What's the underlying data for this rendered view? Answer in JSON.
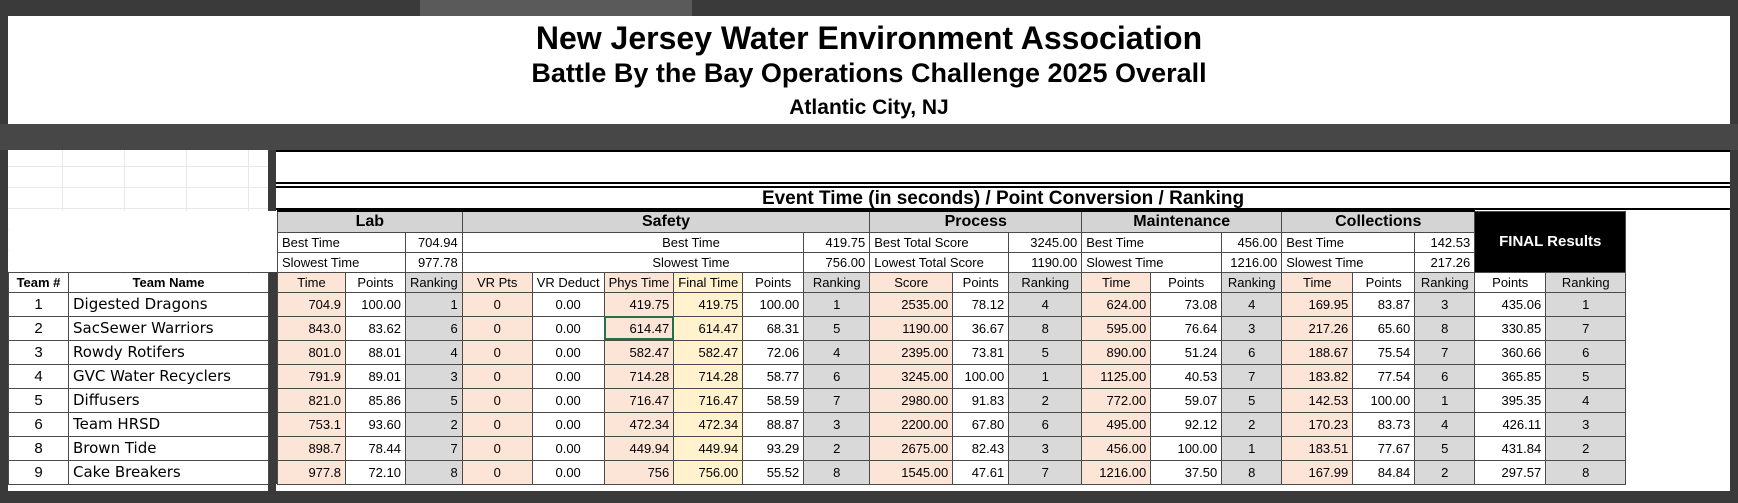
{
  "titles": {
    "line1": "New Jersey Water Environment Association",
    "line2": "Battle By the Bay Operations Challenge 2025 Overall",
    "line3": "Atlantic City, NJ"
  },
  "subheader": "Event Time (in seconds) / Point Conversion / Ranking",
  "groups": {
    "lab": "Lab",
    "safety": "Safety",
    "process": "Process",
    "maintenance": "Maintenance",
    "collections": "Collections",
    "final": "FINAL Results"
  },
  "best": {
    "lab_label": "Best Time",
    "lab_value": "704.94",
    "safety_label": "Best Time",
    "safety_value": "419.75",
    "process_label": "Best Total Score",
    "process_value": "3245.00",
    "maint_label": "Best Time",
    "maint_value": "456.00",
    "coll_label": "Best Time",
    "coll_value": "142.53"
  },
  "slow": {
    "lab_label": "Slowest Time",
    "lab_value": "977.78",
    "safety_label": "Slowest Time",
    "safety_value": "756.00",
    "process_label": "Lowest Total Score",
    "process_value": "1190.00",
    "maint_label": "Slowest Time",
    "maint_value": "1216.00",
    "coll_label": "Slowest Time",
    "coll_value": "217.26"
  },
  "columns": [
    "Team #",
    "Team Name",
    "Time",
    "Points",
    "Ranking",
    "VR Pts",
    "VR Deduct",
    "Phys Time",
    "Final Time",
    "Points",
    "Ranking",
    "Score",
    "Points",
    "Ranking",
    "Time",
    "Points",
    "Ranking",
    "Time",
    "Points",
    "Ranking",
    "Points",
    "Ranking"
  ],
  "rows": [
    [
      "1",
      "Digested Dragons",
      "704.9",
      "100.00",
      "1",
      "0",
      "0.00",
      "419.75",
      "419.75",
      "100.00",
      "1",
      "2535.00",
      "78.12",
      "4",
      "624.00",
      "73.08",
      "4",
      "169.95",
      "83.87",
      "3",
      "435.06",
      "1"
    ],
    [
      "2",
      "SacSewer Warriors",
      "843.0",
      "83.62",
      "6",
      "0",
      "0.00",
      "614.47",
      "614.47",
      "68.31",
      "5",
      "1190.00",
      "36.67",
      "8",
      "595.00",
      "76.64",
      "3",
      "217.26",
      "65.60",
      "8",
      "330.85",
      "7"
    ],
    [
      "3",
      "Rowdy Rotifers",
      "801.0",
      "88.01",
      "4",
      "0",
      "0.00",
      "582.47",
      "582.47",
      "72.06",
      "4",
      "2395.00",
      "73.81",
      "5",
      "890.00",
      "51.24",
      "6",
      "188.67",
      "75.54",
      "7",
      "360.66",
      "6"
    ],
    [
      "4",
      "GVC Water Recyclers",
      "791.9",
      "89.01",
      "3",
      "0",
      "0.00",
      "714.28",
      "714.28",
      "58.77",
      "6",
      "3245.00",
      "100.00",
      "1",
      "1125.00",
      "40.53",
      "7",
      "183.82",
      "77.54",
      "6",
      "365.85",
      "5"
    ],
    [
      "5",
      "Diffusers",
      "821.0",
      "85.86",
      "5",
      "0",
      "0.00",
      "716.47",
      "716.47",
      "58.59",
      "7",
      "2980.00",
      "91.83",
      "2",
      "772.00",
      "59.07",
      "5",
      "142.53",
      "100.00",
      "1",
      "395.35",
      "4"
    ],
    [
      "6",
      "Team HRSD",
      "753.1",
      "93.60",
      "2",
      "0",
      "0.00",
      "472.34",
      "472.34",
      "88.87",
      "3",
      "2200.00",
      "67.80",
      "6",
      "495.00",
      "92.12",
      "2",
      "170.23",
      "83.73",
      "4",
      "426.11",
      "3"
    ],
    [
      "8",
      "Brown Tide",
      "898.7",
      "78.44",
      "7",
      "0",
      "0.00",
      "449.94",
      "449.94",
      "93.29",
      "2",
      "2675.00",
      "82.43",
      "3",
      "456.00",
      "100.00",
      "1",
      "183.51",
      "77.67",
      "5",
      "431.84",
      "2"
    ],
    [
      "9",
      "Cake Breakers",
      "977.8",
      "72.10",
      "8",
      "0",
      "0.00",
      "756",
      "756.00",
      "55.52",
      "8",
      "1545.00",
      "47.61",
      "7",
      "1216.00",
      "37.50",
      "8",
      "167.99",
      "84.84",
      "2",
      "297.57",
      "8"
    ]
  ],
  "colors": {
    "peach": "#fce4d6",
    "yellow": "#fff2cc",
    "gray": "#d9d9d9",
    "frame": "#3a3a3a"
  }
}
